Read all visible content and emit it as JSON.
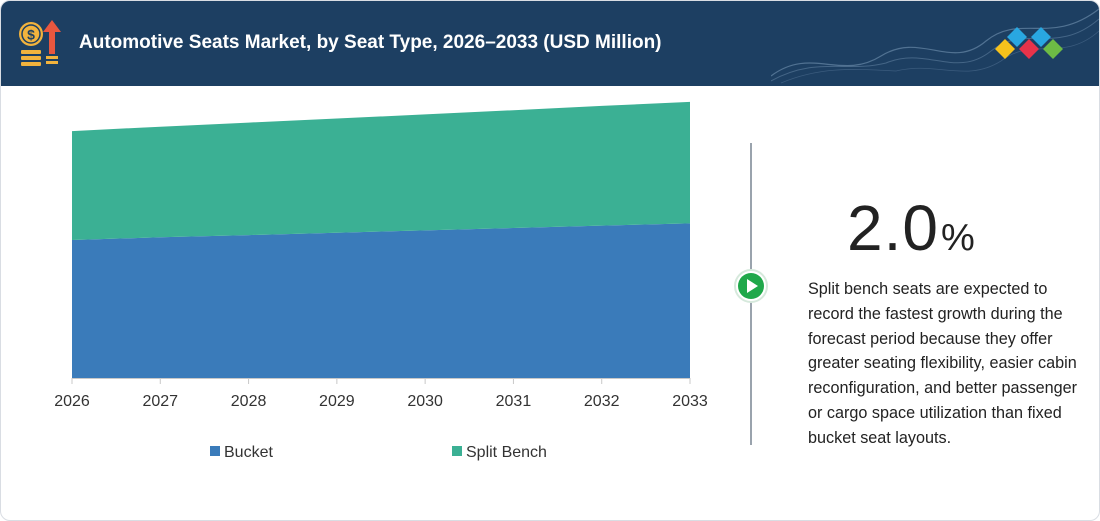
{
  "header": {
    "title": "Automotive Seats Market, by Seat Type, 2026–2033 (USD Million)",
    "icon": "money-growth-icon",
    "logo": "brand-diamonds-logo",
    "background_color": "#1d3f62"
  },
  "colors": {
    "bucket": "#3a7bba",
    "split_bench": "#3bb094",
    "play_button": "#1fa84a"
  },
  "chart_data": {
    "type": "area",
    "stacked": true,
    "x": [
      "2026",
      "2027",
      "2028",
      "2029",
      "2030",
      "2031",
      "2032",
      "2033"
    ],
    "series": [
      {
        "name": "Bucket",
        "values": [
          104,
          106,
          107.7,
          109.5,
          111.2,
          113,
          114.8,
          116.5
        ]
      },
      {
        "name": "Split Bench",
        "values": [
          82,
          83.3,
          84.7,
          86,
          87.4,
          88.8,
          90.2,
          91.5
        ]
      }
    ],
    "title": "",
    "xlabel": "",
    "ylabel": "",
    "ylim": [
      0,
      220
    ],
    "y_axis_visible": false,
    "grid": false,
    "legend": "bottom"
  },
  "kpi": {
    "value": "2.0",
    "unit": "%"
  },
  "description": "Split bench seats are expected to record the fastest growth during the forecast period because they offer greater seating flexibility, easier cabin reconfiguration, and better passenger or cargo space utilization than fixed bucket seat layouts."
}
